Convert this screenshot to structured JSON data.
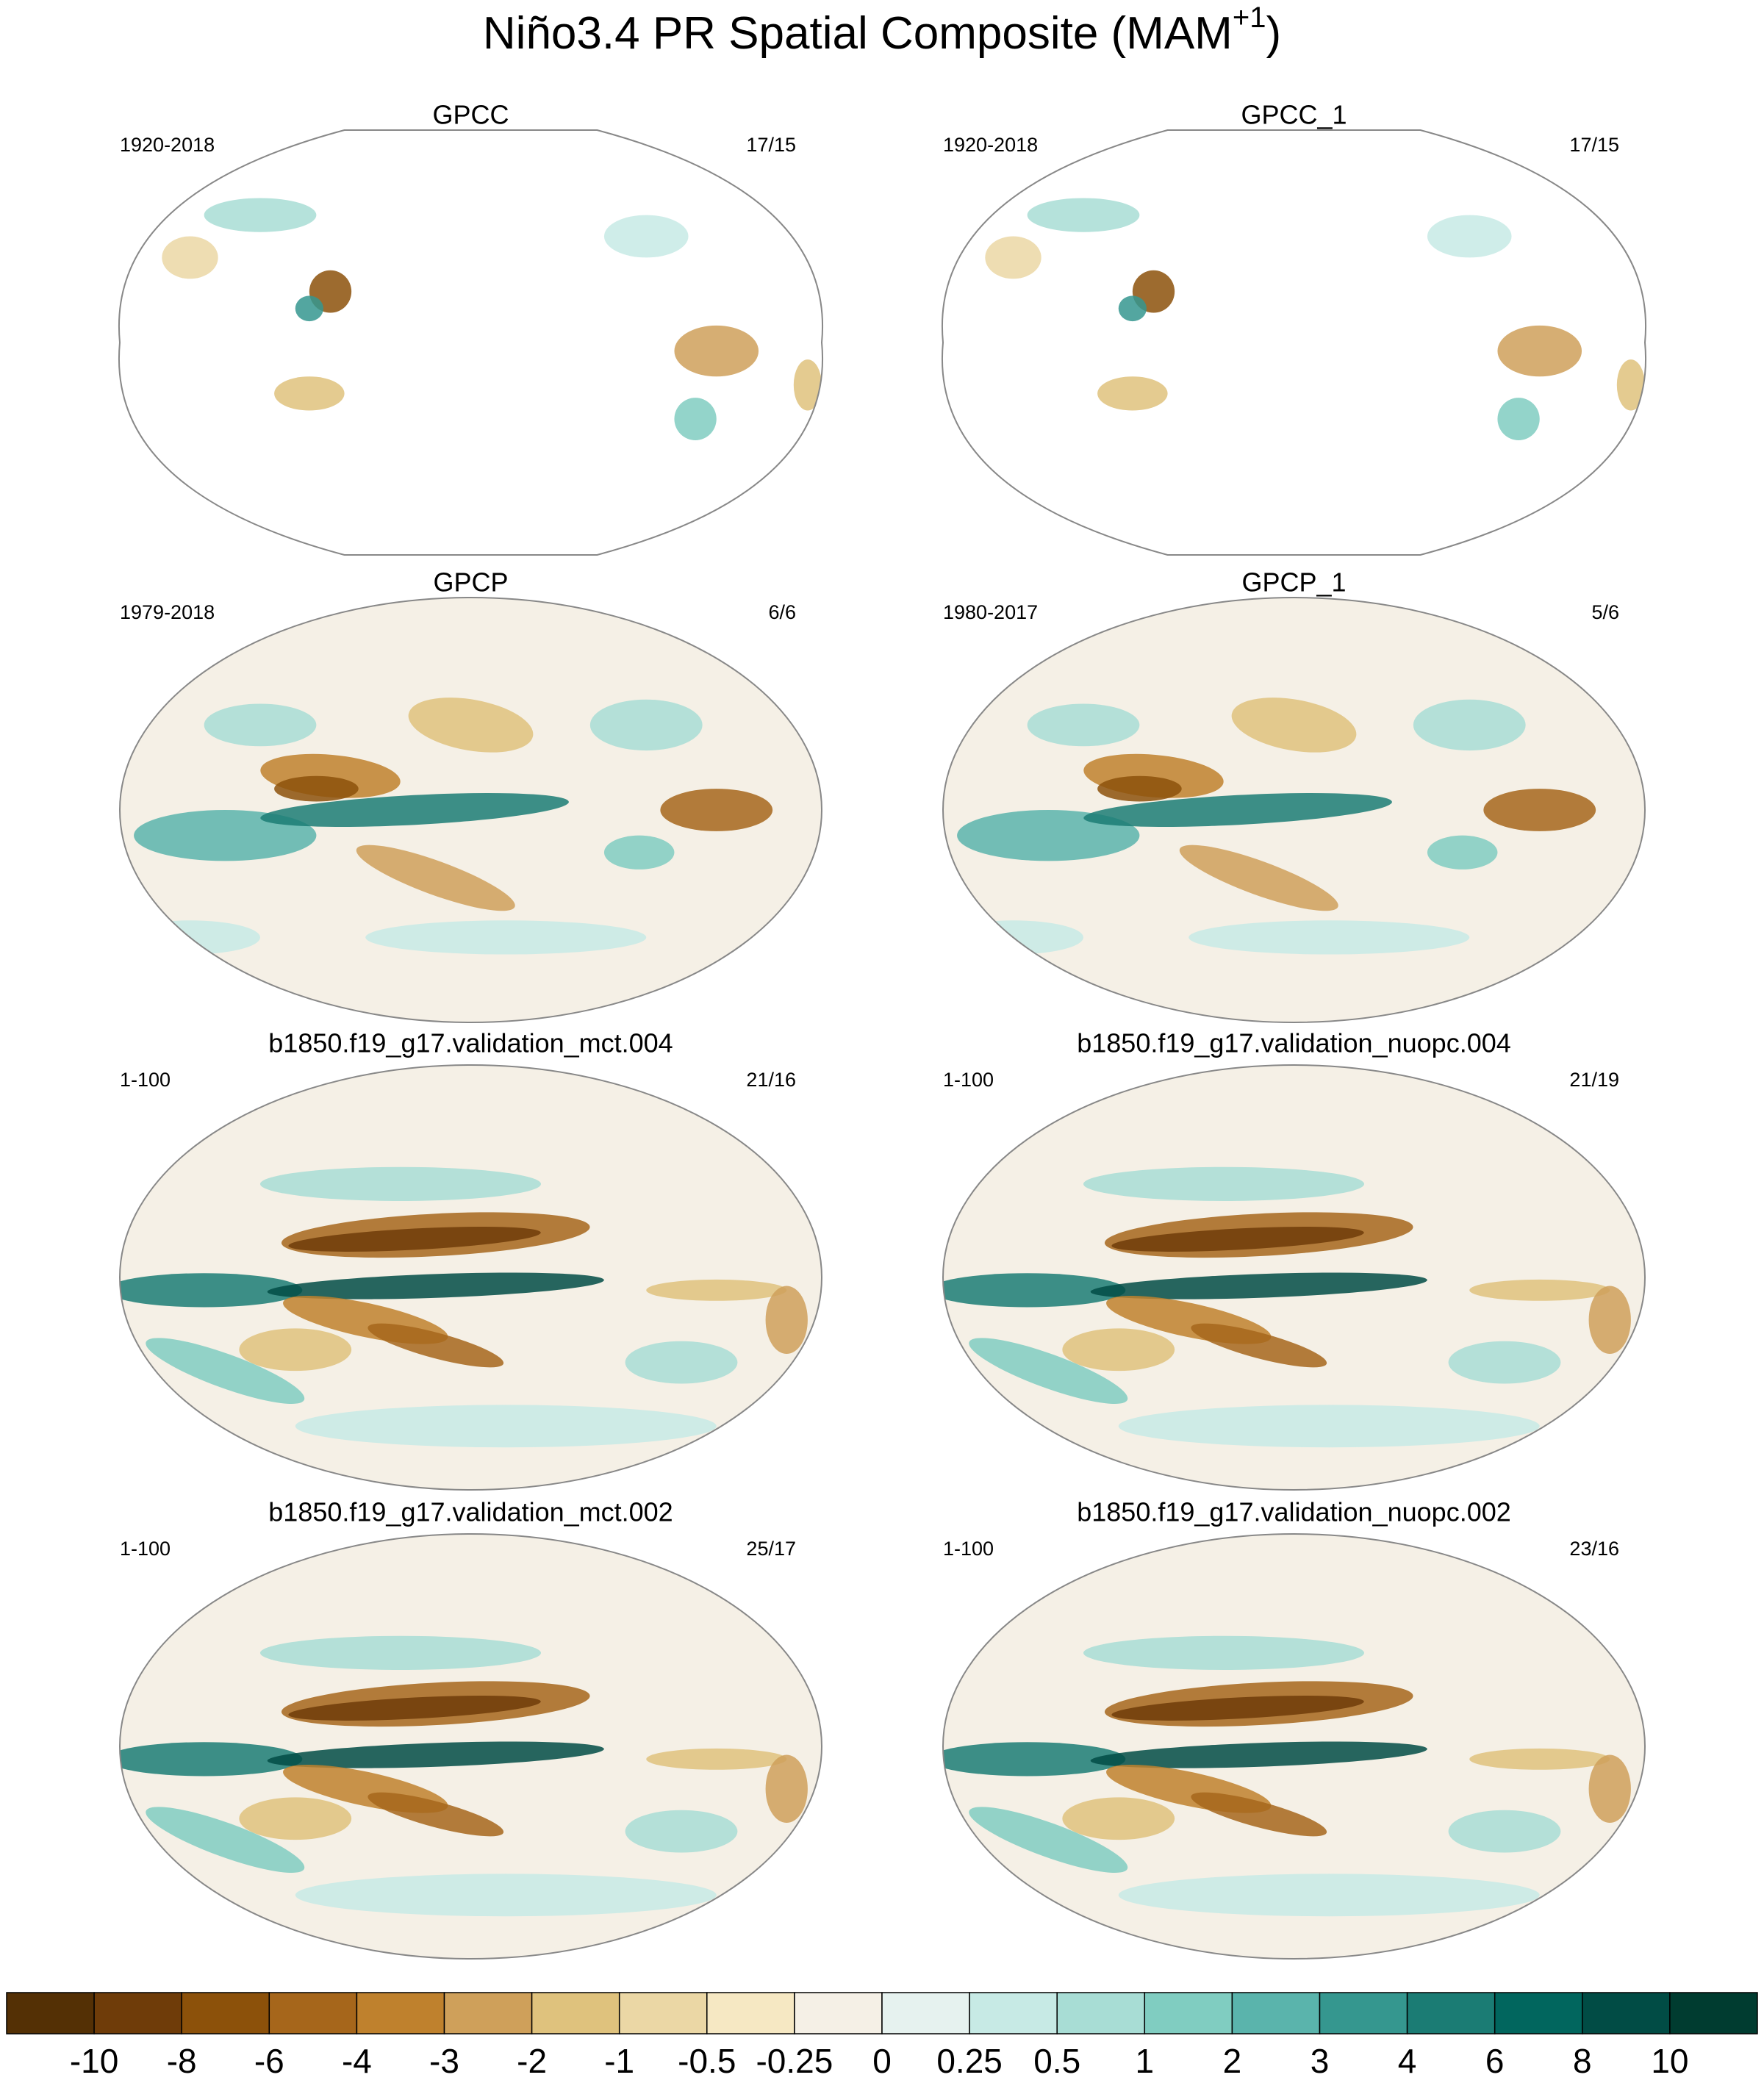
{
  "title": "Niño3.4 PR Spatial Composite (MAM",
  "title_superscript": "+1",
  "title_end": ")",
  "panels": [
    {
      "title": "GPCC",
      "left": "1920-2018",
      "right": "17/15"
    },
    {
      "title": "GPCC_1",
      "left": "1920-2018",
      "right": "17/15"
    },
    {
      "title": "GPCP",
      "left": "1979-2018",
      "right": "6/6"
    },
    {
      "title": "GPCP_1",
      "left": "1980-2017",
      "right": "5/6"
    },
    {
      "title": "b1850.f19_g17.validation_mct.004",
      "left": "1-100",
      "right": "21/16"
    },
    {
      "title": "b1850.f19_g17.validation_nuopc.004",
      "left": "1-100",
      "right": "21/19"
    },
    {
      "title": "b1850.f19_g17.validation_mct.002",
      "left": "1-100",
      "right": "25/17"
    },
    {
      "title": "b1850.f19_g17.validation_nuopc.002",
      "left": "1-100",
      "right": "23/16"
    }
  ],
  "colorbar": {
    "levels": [
      -10,
      -8,
      -6,
      -4,
      -3,
      -2,
      -1,
      -0.5,
      -0.25,
      0,
      0.25,
      0.5,
      1,
      2,
      3,
      4,
      6,
      8,
      10
    ],
    "colors": [
      "#543005",
      "#6f3c09",
      "#8c510a",
      "#a6661b",
      "#bf812d",
      "#cfa05a",
      "#dfc27d",
      "#ebd7a5",
      "#f6e8c3",
      "#f5f0e6",
      "#e6f2ef",
      "#c7eae5",
      "#a8ddd5",
      "#80cdc1",
      "#5ab4ac",
      "#35978f",
      "#1b7c74",
      "#01665e",
      "#014c45",
      "#003c30"
    ]
  }
}
